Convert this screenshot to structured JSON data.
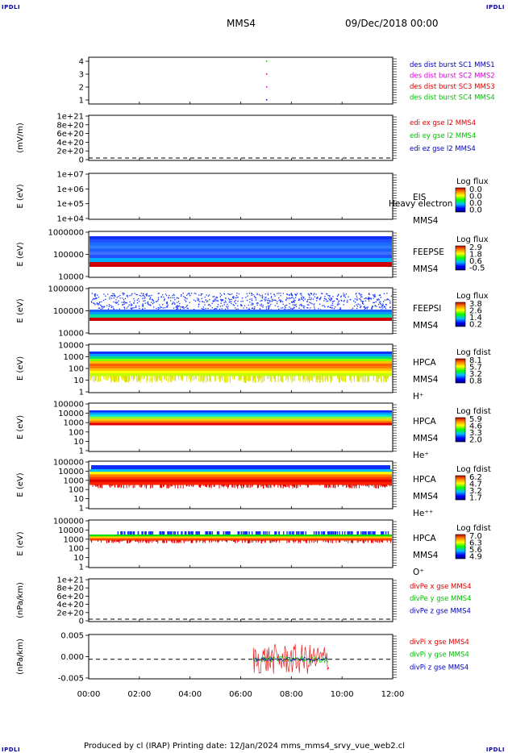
{
  "corner_label": "IPDLI",
  "header": {
    "title": "MMS4",
    "date": "09/Dec/2018 00:00"
  },
  "footer": {
    "text": "Produced by cl (IRAP)   Printing date: 12/Jan/2024   mms_mms4_srvy_vue_web2.cl"
  },
  "colors": {
    "red": "#e00000",
    "green": "#00c000",
    "blue": "#0000c0",
    "magenta": "#e000e0"
  },
  "chart_data": {
    "type": "heatmap",
    "x_range": [
      "00:00",
      "12:00"
    ],
    "x_ticks": [
      "00:00",
      "02:00",
      "04:00",
      "06:00",
      "08:00",
      "10:00",
      "12:00"
    ],
    "panels": [
      {
        "id": "des-dist",
        "ylabel": "",
        "yticks": [
          "4",
          "3",
          "2",
          "1"
        ],
        "legend": [
          {
            "text": "des dist burst SC1 MMS1",
            "color": "#0000c0"
          },
          {
            "text": "des dist burst SC2 MMS2",
            "color": "#e000e0"
          },
          {
            "text": "des dist burst SC3 MMS3",
            "color": "#e00000"
          },
          {
            "text": "des dist burst SC4 MMS4",
            "color": "#00c000"
          }
        ],
        "markers": [
          {
            "t": "07:00",
            "sc": 1
          },
          {
            "t": "07:00",
            "sc": 2
          },
          {
            "t": "07:00",
            "sc": 3
          },
          {
            "t": "07:00",
            "sc": 4
          }
        ]
      },
      {
        "id": "edi-e",
        "ylabel": "(mV/m)",
        "yticks": [
          "1e+21",
          "8e+20",
          "6e+20",
          "4e+20",
          "2e+20",
          "0"
        ],
        "legend": [
          {
            "text": "edi ex gse l2 MMS4",
            "color": "#e00000"
          },
          {
            "text": "edi ey gse l2 MMS4",
            "color": "#00c000"
          },
          {
            "text": "edi ez gse l2 MMS4",
            "color": "#0000c0"
          }
        ]
      },
      {
        "id": "eis",
        "ylabel": "E (eV)",
        "yticks": [
          "1e+07",
          "1e+06",
          "1e+05",
          "1e+04"
        ],
        "labels": [
          "EIS",
          "MMS4"
        ],
        "overlay_text": "Heavy electron to",
        "cbar_title": "Log flux",
        "cbar_ticks": [
          "0.0",
          "0.0",
          "0.0",
          "0.0"
        ]
      },
      {
        "id": "feeps-e",
        "ylabel": "E (eV)",
        "yticks": [
          "1000000",
          "100000",
          "10000"
        ],
        "labels": [
          "FEEPSE",
          "MMS4"
        ],
        "cbar_title": "Log flux",
        "cbar_ticks": [
          "2.9",
          "1.8",
          "0.6",
          "-0.5"
        ]
      },
      {
        "id": "feeps-i",
        "ylabel": "E (eV)",
        "yticks": [
          "1000000",
          "100000",
          "10000"
        ],
        "labels": [
          "FEEPSI",
          "MMS4"
        ],
        "cbar_title": "Log flux",
        "cbar_ticks": [
          "3.8",
          "2.6",
          "1.4",
          "0.2"
        ]
      },
      {
        "id": "hpca-h",
        "ylabel": "E (eV)",
        "yticks": [
          "10000",
          "1000",
          "100",
          "10",
          "1"
        ],
        "labels": [
          "HPCA",
          "MMS4",
          "H⁺"
        ],
        "cbar_title": "Log fdist",
        "cbar_ticks": [
          "8.1",
          "5.7",
          "3.2",
          "0.8"
        ]
      },
      {
        "id": "hpca-he",
        "ylabel": "E (eV)",
        "yticks": [
          "100000",
          "10000",
          "1000",
          "100",
          "10",
          "1"
        ],
        "labels": [
          "HPCA",
          "MMS4",
          "He⁺"
        ],
        "cbar_title": "Log fdist",
        "cbar_ticks": [
          "5.9",
          "4.6",
          "3.3",
          "2.0"
        ]
      },
      {
        "id": "hpca-hepp",
        "ylabel": "E (eV)",
        "yticks": [
          "100000",
          "10000",
          "1000",
          "100",
          "10",
          "1"
        ],
        "labels": [
          "HPCA",
          "MMS4",
          "He⁺⁺"
        ],
        "cbar_title": "Log fdist",
        "cbar_ticks": [
          "6.2",
          "4.7",
          "3.2",
          "1.7"
        ]
      },
      {
        "id": "hpca-o",
        "ylabel": "E (eV)",
        "yticks": [
          "100000",
          "10000",
          "1000",
          "100",
          "10",
          "1"
        ],
        "labels": [
          "HPCA",
          "MMS4",
          "O⁺"
        ],
        "cbar_title": "Log fdist",
        "cbar_ticks": [
          "7.0",
          "6.3",
          "5.6",
          "4.9"
        ]
      },
      {
        "id": "divpe",
        "ylabel": "(nPa/km)",
        "yticks": [
          "1e+21",
          "8e+20",
          "6e+20",
          "4e+20",
          "2e+20",
          "0"
        ],
        "legend": [
          {
            "text": "divPe x gse MMS4",
            "color": "#e00000"
          },
          {
            "text": "divPe y gse MMS4",
            "color": "#00c000"
          },
          {
            "text": "divPe z gse MMS4",
            "color": "#0000c0"
          }
        ]
      },
      {
        "id": "divpi",
        "ylabel": "(nPa/km)",
        "yticks": [
          "0.005",
          "0.000",
          "-0.005"
        ],
        "legend": [
          {
            "text": "divPi x gse MMS4",
            "color": "#e00000"
          },
          {
            "text": "divPi y gse MMS4",
            "color": "#00c000"
          },
          {
            "text": "divPi z gse MMS4",
            "color": "#0000c0"
          }
        ],
        "data_interval": [
          "06:30",
          "09:30"
        ],
        "amplitude": 0.006
      }
    ]
  }
}
